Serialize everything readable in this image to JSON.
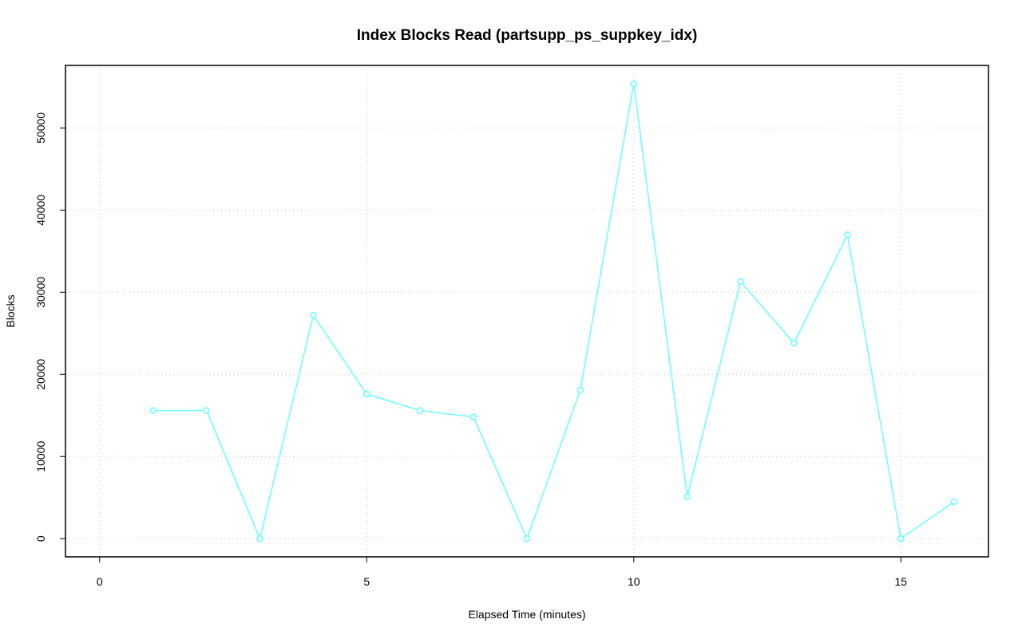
{
  "chart_data": {
    "type": "line",
    "title": "Index Blocks Read (partsupp_ps_suppkey_idx)",
    "x_label": "Elapsed Time (minutes)",
    "y_label": "Blocks",
    "x": [
      1,
      2,
      3,
      4,
      5,
      6,
      7,
      8,
      9,
      10,
      11,
      12,
      13,
      14,
      15,
      16
    ],
    "series": [
      {
        "name": "partsupp_ps_suppkey_idx",
        "color": "#66ffff",
        "values": [
          15600,
          15600,
          0,
          27200,
          17600,
          15600,
          14800,
          0,
          18100,
          55400,
          5100,
          31300,
          23800,
          37000,
          0,
          4500
        ]
      }
    ],
    "xlim": [
      -0.64,
      16.64
    ],
    "ylim": [
      -2216,
      57616
    ],
    "xticks": [
      0,
      5,
      10,
      15
    ],
    "yticks": [
      0,
      10000,
      20000,
      30000,
      40000,
      50000
    ],
    "grid": true
  }
}
